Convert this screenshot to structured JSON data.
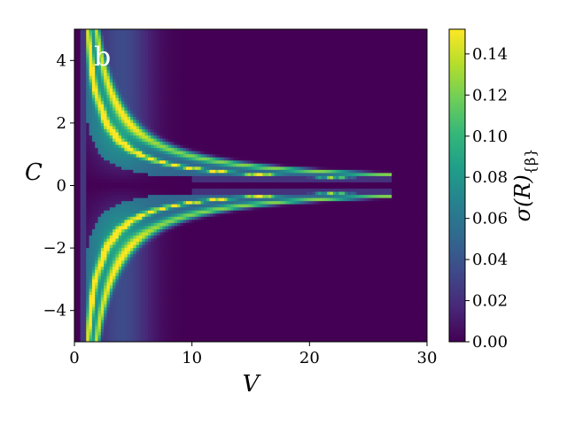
{
  "chart_data": {
    "type": "heatmap",
    "panel_label": "b",
    "xlabel": "V",
    "ylabel": "C",
    "colorbar_label_base": "σ(R)",
    "colorbar_label_sub": "{β}",
    "xlim": [
      0,
      30
    ],
    "ylim": [
      -5,
      5
    ],
    "xticks": [
      0,
      10,
      20,
      30
    ],
    "xtick_labels": [
      "0",
      "10",
      "20",
      "30"
    ],
    "yticks": [
      4,
      2,
      0,
      -2,
      -4
    ],
    "ytick_labels": [
      "4",
      "2",
      "0",
      "−2",
      "−4"
    ],
    "colorbar_range": [
      0,
      0.152
    ],
    "colorbar_ticks": [
      0.0,
      0.02,
      0.04,
      0.06,
      0.08,
      0.1,
      0.12,
      0.14
    ],
    "colorbar_tick_labels": [
      "0.00",
      "0.02",
      "0.04",
      "0.06",
      "0.08",
      "0.10",
      "0.12",
      "0.14"
    ],
    "colormap": "viridis",
    "grid": false,
    "features": {
      "background_value": 0.0,
      "left_band": {
        "v_start": 0.5,
        "v_inner": 1.0,
        "value": 0.04
      },
      "hyperbolic_ridges": [
        {
          "name": "inner",
          "k": 5.5,
          "width": 0.4,
          "peak": 0.14
        },
        {
          "name": "outer",
          "k": 9.5,
          "width": 0.5,
          "peak": 0.11
        }
      ],
      "fan_edge_k": 11.5,
      "cutoff_v": 27
    }
  },
  "colors": {
    "viridis_stops": [
      "#440154",
      "#482878",
      "#3e4989",
      "#31688e",
      "#26828e",
      "#1f9e89",
      "#35b779",
      "#6ece58",
      "#b5de2b",
      "#fde725"
    ]
  }
}
